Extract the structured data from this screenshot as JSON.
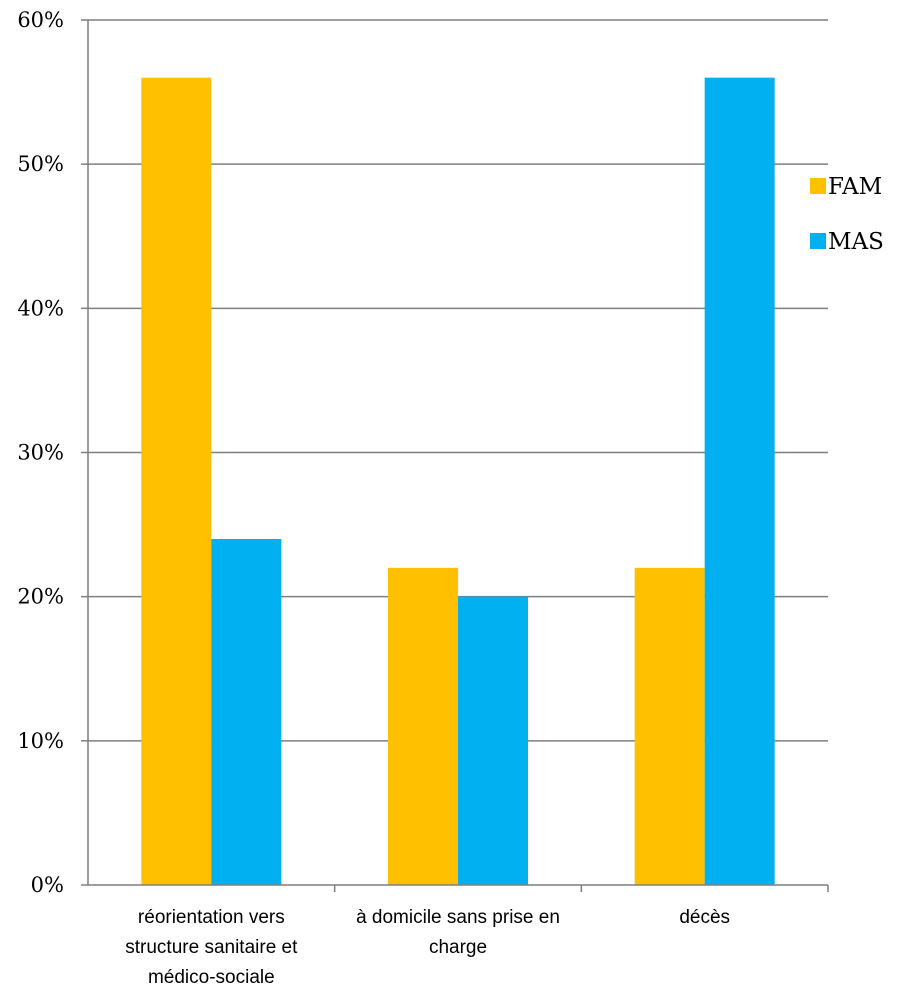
{
  "chart_data": {
    "type": "bar",
    "title": "",
    "xlabel": "",
    "ylabel": "",
    "categories": [
      "réorientation vers structure sanitaire et médico-sociale",
      "à domicile sans prise en charge",
      "décès"
    ],
    "category_lines": [
      [
        "réorientation vers",
        "structure sanitaire et",
        "médico-sociale"
      ],
      [
        "à domicile sans prise en",
        "charge"
      ],
      [
        "décès"
      ]
    ],
    "series": [
      {
        "name": "FAM",
        "values": [
          0.56,
          0.22,
          0.22
        ],
        "color": "#FFC000"
      },
      {
        "name": "MAS",
        "values": [
          0.24,
          0.2,
          0.56
        ],
        "color": "#00B0F0"
      }
    ],
    "ylim": [
      0,
      0.6
    ],
    "yticks": [
      "0%",
      "10%",
      "20%",
      "30%",
      "40%",
      "50%",
      "60%"
    ],
    "grid": true,
    "legend_position": "right"
  }
}
